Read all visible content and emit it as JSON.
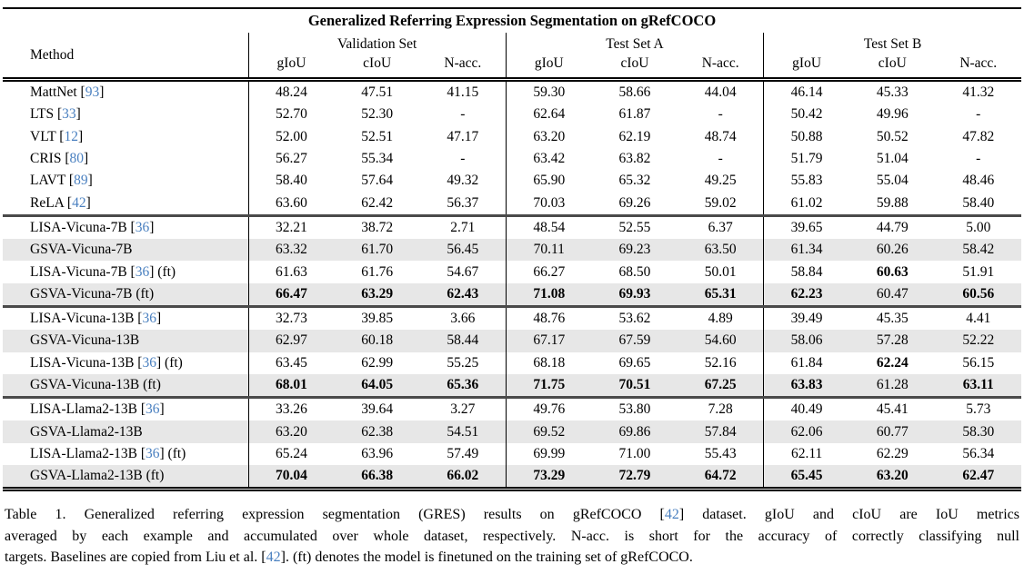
{
  "title": "Generalized Referring Expression Segmentation on gRefCOCO",
  "columns": {
    "method": "Method",
    "groups": [
      "Validation Set",
      "Test Set A",
      "Test Set B"
    ],
    "metrics": [
      "gIoU",
      "cIoU",
      "N-acc."
    ]
  },
  "colors": {
    "citation_blue": "#4a80c0",
    "row_shade": "#e7e7e7"
  },
  "table": {
    "groups": [
      {
        "rows": [
          {
            "method": "MattNet",
            "cite": "93",
            "suffix": "",
            "shaded": false,
            "bold": [],
            "values": [
              "48.24",
              "47.51",
              "41.15",
              "59.30",
              "58.66",
              "44.04",
              "46.14",
              "45.33",
              "41.32"
            ]
          },
          {
            "method": "LTS",
            "cite": "33",
            "suffix": "",
            "shaded": false,
            "bold": [],
            "values": [
              "52.70",
              "52.30",
              "-",
              "62.64",
              "61.87",
              "-",
              "50.42",
              "49.96",
              "-"
            ]
          },
          {
            "method": "VLT",
            "cite": "12",
            "suffix": "",
            "shaded": false,
            "bold": [],
            "values": [
              "52.00",
              "52.51",
              "47.17",
              "63.20",
              "62.19",
              "48.74",
              "50.88",
              "50.52",
              "47.82"
            ]
          },
          {
            "method": "CRIS",
            "cite": "80",
            "suffix": "",
            "shaded": false,
            "bold": [],
            "values": [
              "56.27",
              "55.34",
              "-",
              "63.42",
              "63.82",
              "-",
              "51.79",
              "51.04",
              "-"
            ]
          },
          {
            "method": "LAVT",
            "cite": "89",
            "suffix": "",
            "shaded": false,
            "bold": [],
            "values": [
              "58.40",
              "57.64",
              "49.32",
              "65.90",
              "65.32",
              "49.25",
              "55.83",
              "55.04",
              "48.46"
            ]
          },
          {
            "method": "ReLA",
            "cite": "42",
            "suffix": "",
            "shaded": false,
            "bold": [],
            "values": [
              "63.60",
              "62.42",
              "56.37",
              "70.03",
              "69.26",
              "59.02",
              "61.02",
              "59.88",
              "58.40"
            ]
          }
        ]
      },
      {
        "rows": [
          {
            "method": "LISA-Vicuna-7B",
            "cite": "36",
            "suffix": "",
            "shaded": false,
            "bold": [],
            "values": [
              "32.21",
              "38.72",
              "2.71",
              "48.54",
              "52.55",
              "6.37",
              "39.65",
              "44.79",
              "5.00"
            ]
          },
          {
            "method": "GSVA-Vicuna-7B",
            "cite": "",
            "suffix": "",
            "shaded": true,
            "bold": [],
            "values": [
              "63.32",
              "61.70",
              "56.45",
              "70.11",
              "69.23",
              "63.50",
              "61.34",
              "60.26",
              "58.42"
            ]
          },
          {
            "method": "LISA-Vicuna-7B",
            "cite": "36",
            "suffix": " (ft)",
            "shaded": false,
            "bold": [
              7
            ],
            "values": [
              "61.63",
              "61.76",
              "54.67",
              "66.27",
              "68.50",
              "50.01",
              "58.84",
              "60.63",
              "51.91"
            ]
          },
          {
            "method": "GSVA-Vicuna-7B",
            "cite": "",
            "suffix": " (ft)",
            "shaded": true,
            "bold": [
              0,
              1,
              2,
              3,
              4,
              5,
              6,
              8
            ],
            "values": [
              "66.47",
              "63.29",
              "62.43",
              "71.08",
              "69.93",
              "65.31",
              "62.23",
              "60.47",
              "60.56"
            ]
          }
        ]
      },
      {
        "rows": [
          {
            "method": "LISA-Vicuna-13B",
            "cite": "36",
            "suffix": "",
            "shaded": false,
            "bold": [],
            "values": [
              "32.73",
              "39.85",
              "3.66",
              "48.76",
              "53.62",
              "4.89",
              "39.49",
              "45.35",
              "4.41"
            ]
          },
          {
            "method": "GSVA-Vicuna-13B",
            "cite": "",
            "suffix": "",
            "shaded": true,
            "bold": [],
            "values": [
              "62.97",
              "60.18",
              "58.44",
              "67.17",
              "67.59",
              "54.60",
              "58.06",
              "57.28",
              "52.22"
            ]
          },
          {
            "method": "LISA-Vicuna-13B",
            "cite": "36",
            "suffix": " (ft)",
            "shaded": false,
            "bold": [
              7
            ],
            "values": [
              "63.45",
              "62.99",
              "55.25",
              "68.18",
              "69.65",
              "52.16",
              "61.84",
              "62.24",
              "56.15"
            ]
          },
          {
            "method": "GSVA-Vicuna-13B",
            "cite": "",
            "suffix": " (ft)",
            "shaded": true,
            "bold": [
              0,
              1,
              2,
              3,
              4,
              5,
              6,
              8
            ],
            "values": [
              "68.01",
              "64.05",
              "65.36",
              "71.75",
              "70.51",
              "67.25",
              "63.83",
              "61.28",
              "63.11"
            ]
          }
        ]
      },
      {
        "rows": [
          {
            "method": "LISA-Llama2-13B",
            "cite": "36",
            "suffix": "",
            "shaded": false,
            "bold": [],
            "values": [
              "33.26",
              "39.64",
              "3.27",
              "49.76",
              "53.80",
              "7.28",
              "40.49",
              "45.41",
              "5.73"
            ]
          },
          {
            "method": "GSVA-Llama2-13B",
            "cite": "",
            "suffix": "",
            "shaded": true,
            "bold": [],
            "values": [
              "63.20",
              "62.38",
              "54.51",
              "69.52",
              "69.86",
              "57.84",
              "62.06",
              "60.77",
              "58.30"
            ]
          },
          {
            "method": "LISA-Llama2-13B",
            "cite": "36",
            "suffix": " (ft)",
            "shaded": false,
            "bold": [],
            "values": [
              "65.24",
              "63.96",
              "57.49",
              "69.99",
              "71.00",
              "55.43",
              "62.11",
              "62.29",
              "56.34"
            ]
          },
          {
            "method": "GSVA-Llama2-13B",
            "cite": "",
            "suffix": " (ft)",
            "shaded": true,
            "bold": [
              0,
              1,
              2,
              3,
              4,
              5,
              6,
              7,
              8
            ],
            "values": [
              "70.04",
              "66.38",
              "66.02",
              "73.29",
              "72.79",
              "64.72",
              "65.45",
              "63.20",
              "62.47"
            ]
          }
        ]
      }
    ]
  },
  "caption": {
    "lines": [
      {
        "last": false,
        "segments": [
          {
            "text": "Table 1.  Generalized referring expression segmentation (GRES) results on gRefCOCO ["
          },
          {
            "cite": "42"
          },
          {
            "text": "] dataset.  gIoU and cIoU are IoU metrics"
          }
        ]
      },
      {
        "last": false,
        "segments": [
          {
            "text": "averaged by each example and accumulated over whole dataset, respectively. N-acc. is short for the accuracy of correctly classifying null"
          }
        ]
      },
      {
        "last": true,
        "segments": [
          {
            "text": "targets. Baselines are copied from Liu et al. ["
          },
          {
            "cite": "42"
          },
          {
            "text": "]. (ft) denotes the model is finetuned on the training set of gRefCOCO."
          }
        ]
      }
    ]
  }
}
